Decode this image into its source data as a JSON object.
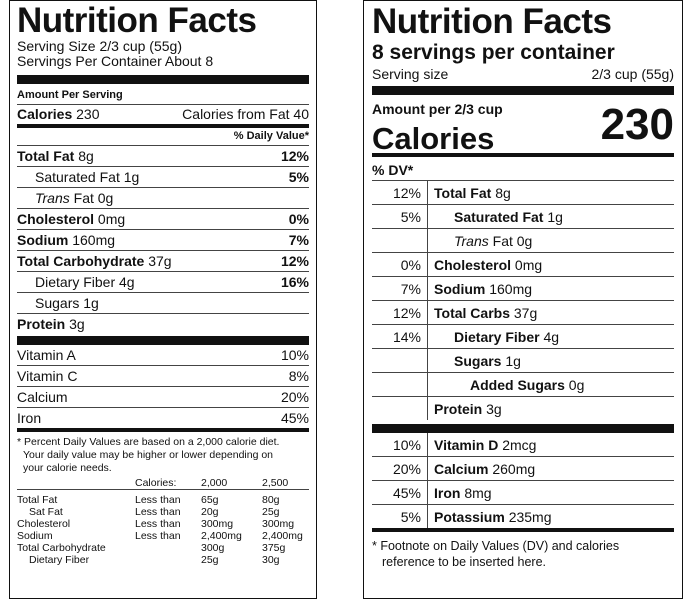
{
  "old_label": {
    "title": "Nutrition Facts",
    "serving_size": "Serving Size 2/3 cup (55g)",
    "servings_per_container": "Servings Per Container About 8",
    "amount_per_serving": "Amount Per Serving",
    "calories_label": "Calories",
    "calories_value": "230",
    "calories_from_fat": "Calories from Fat 40",
    "dv_header": "% Daily Value*",
    "nutrients": [
      {
        "name": "Total Fat",
        "amount": "8g",
        "dv": "12%"
      },
      {
        "name": "Saturated Fat 1g",
        "dv": "5%"
      },
      {
        "name_italic": "Trans",
        "name": "Fat 0g",
        "dv": ""
      },
      {
        "name": "Cholesterol",
        "amount": "0mg",
        "dv": "0%"
      },
      {
        "name": "Sodium",
        "amount": "160mg",
        "dv": "7%"
      },
      {
        "name": "Total Carbohydrate",
        "amount": "37g",
        "dv": "12%"
      },
      {
        "name": "Dietary Fiber 4g",
        "dv": "16%"
      },
      {
        "name": "Sugars 1g",
        "dv": ""
      },
      {
        "name": "Protein",
        "amount": "3g",
        "dv": ""
      }
    ],
    "vitamins": [
      {
        "name": "Vitamin A",
        "dv": "10%"
      },
      {
        "name": "Vitamin C",
        "dv": "8%"
      },
      {
        "name": "Calcium",
        "dv": "20%"
      },
      {
        "name": "Iron",
        "dv": "45%"
      }
    ],
    "footnote": [
      "* Percent Daily Values are based on a 2,000 calorie diet.",
      "Your daily value may be higher or lower depending on",
      "your calorie needs."
    ],
    "dv_table": {
      "header": [
        "",
        "Calories:",
        "2,000",
        "2,500"
      ],
      "rows": [
        [
          "Total Fat",
          "Less than",
          "65g",
          "80g"
        ],
        [
          "Sat Fat",
          "Less than",
          "20g",
          "25g"
        ],
        [
          "Cholesterol",
          "Less than",
          "300mg",
          "300mg"
        ],
        [
          "Sodium",
          "Less than",
          "2,400mg",
          "2,400mg"
        ],
        [
          "Total Carbohydrate",
          "",
          "300g",
          "375g"
        ],
        [
          "Dietary Fiber",
          "",
          "25g",
          "30g"
        ]
      ]
    }
  },
  "new_label": {
    "title": "Nutrition Facts",
    "servings": "8 servings per container",
    "serving_size_label": "Serving size",
    "serving_size_value": "2/3 cup (55g)",
    "amount_per": "Amount per 2/3 cup",
    "calories_label": "Calories",
    "calories_value": "230",
    "dv_header": "% DV*",
    "nutrients": [
      {
        "dv": "12%",
        "name": "Total Fat",
        "amount": "8g"
      },
      {
        "dv": "5%",
        "name": "Saturated Fat",
        "amount": "1g"
      },
      {
        "dv": "",
        "name_italic": "Trans",
        "name": "Fat",
        "amount": "0g"
      },
      {
        "dv": "0%",
        "name": "Cholesterol",
        "amount": "0mg"
      },
      {
        "dv": "7%",
        "name": "Sodium",
        "amount": "160mg"
      },
      {
        "dv": "12%",
        "name": "Total Carbs",
        "amount": "37g"
      },
      {
        "dv": "14%",
        "name": "Dietary Fiber",
        "amount": "4g"
      },
      {
        "dv": "",
        "name": "Sugars",
        "amount": "1g"
      },
      {
        "dv": "",
        "name": "Added Sugars",
        "amount": "0g"
      },
      {
        "dv": "",
        "name": "Protein",
        "amount": "3g"
      }
    ],
    "vitamins": [
      {
        "dv": "10%",
        "name": "Vitamin D",
        "amount": "2mcg"
      },
      {
        "dv": "20%",
        "name": "Calcium",
        "amount": "260mg"
      },
      {
        "dv": "45%",
        "name": "Iron",
        "amount": "8mg"
      },
      {
        "dv": "5%",
        "name": "Potassium",
        "amount": "235mg"
      }
    ],
    "footnote": [
      "* Footnote on Daily Values (DV) and calories",
      "reference to be inserted here."
    ]
  }
}
